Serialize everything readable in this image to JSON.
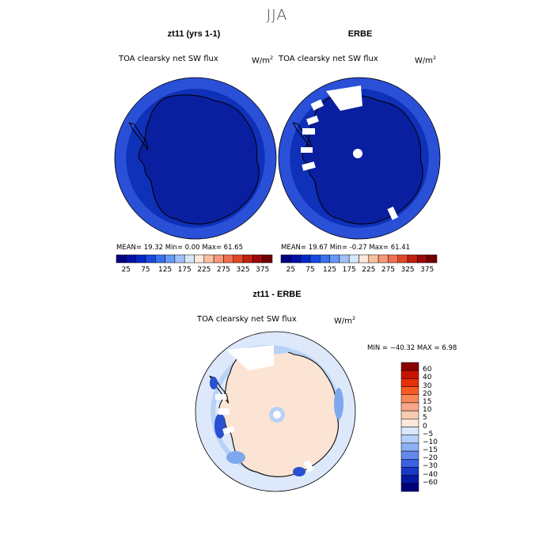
{
  "main_title": "JJA",
  "panels": [
    {
      "title": "zt11 (yrs 1-1)",
      "variable": "TOA clearsky net SW flux",
      "units": "W/m",
      "units_sup": "2",
      "stats": "MEAN=   19.32   Min=     0.00   Max=    61.65"
    },
    {
      "title": "ERBE",
      "variable": "TOA clearsky net SW flux",
      "units": "W/m",
      "units_sup": "2",
      "stats": "MEAN=   19.67   Min=    -0.27   Max=    61.41"
    }
  ],
  "top_colorbar": {
    "ticks": [
      "25",
      "75",
      "125",
      "175",
      "225",
      "275",
      "325",
      "375"
    ],
    "colors": [
      "#000080",
      "#0010a8",
      "#0028c8",
      "#1848e0",
      "#3870f0",
      "#6898f8",
      "#a0c0f8",
      "#d8e8fc",
      "#fce8dc",
      "#f8c0a0",
      "#f89878",
      "#f07050",
      "#e04828",
      "#c02010",
      "#9c0808",
      "#700000"
    ]
  },
  "diff_panel": {
    "title": "zt11 - ERBE",
    "variable": "TOA clearsky net SW flux",
    "units": "W/m",
    "units_sup": "2",
    "minmax": "MIN = −40.32  MAX =     6.98"
  },
  "diff_colorbar": {
    "labels": [
      "60",
      "40",
      "30",
      "20",
      "15",
      "10",
      "5",
      "0",
      "−5",
      "−10",
      "−15",
      "−20",
      "−30",
      "−40",
      "−60"
    ],
    "colors": [
      "#8b0000",
      "#c81400",
      "#e83008",
      "#f85a20",
      "#f88858",
      "#f8a888",
      "#f8ccb0",
      "#fce8da",
      "#d8e8fc",
      "#b4d0f8",
      "#8cb0f4",
      "#6488ec",
      "#3c60e0",
      "#1838c8",
      "#0818a0",
      "#000078"
    ]
  },
  "map_colors": {
    "ocean_outer": "#2a50d8",
    "ocean_inner": "#0f30b8",
    "continent": "#0a1fa0",
    "diff_ocean": "#dde9fb",
    "diff_land": "#fce4d4",
    "diff_light_blue": "#b8d2f6",
    "diff_mid_blue": "#7ea8ee",
    "diff_dark_blue": "#2850d0"
  }
}
